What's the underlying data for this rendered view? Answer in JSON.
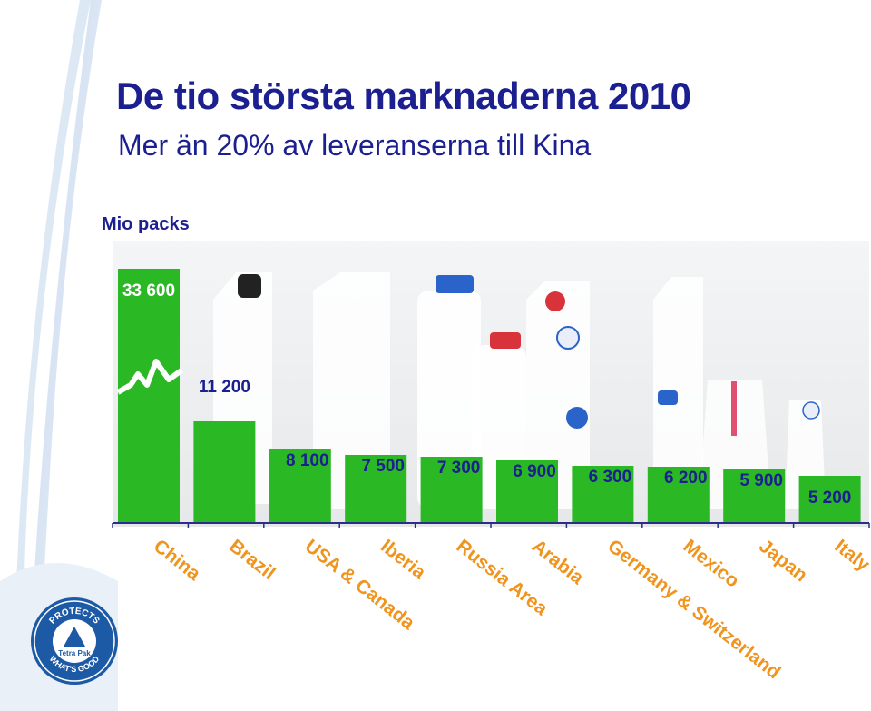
{
  "page": {
    "title": "De tio största marknaderna 2010",
    "subtitle": "Mer än 20% av leveranserna till Kina"
  },
  "logo": {
    "top_text": "PROTECTS",
    "bottom_text": "WHAT'S GOOD",
    "brand": "Tetra Pak"
  },
  "colors": {
    "title": "#1b1f8f",
    "bar": "#2bb825",
    "category": "#f0941e",
    "axis": "#2a2f8a",
    "logo": "#1d5aa6"
  },
  "chart_data": {
    "type": "bar",
    "title": "De tio största marknaderna 2010",
    "ylabel": "Mio packs",
    "axis_break": true,
    "categories": [
      "China",
      "Brazil",
      "USA & Canada",
      "Iberia",
      "Russia Area",
      "Arabia",
      "Germany & Switzerland",
      "Mexico",
      "Japan",
      "Italy"
    ],
    "values": [
      33600,
      11200,
      8100,
      7500,
      7300,
      6900,
      6300,
      6200,
      5900,
      5200
    ],
    "value_labels": [
      "33 600",
      "11 200",
      "8 100",
      "7 500",
      "7 300",
      "6 900",
      "6 300",
      "6 200",
      "5 900",
      "5 200"
    ]
  }
}
